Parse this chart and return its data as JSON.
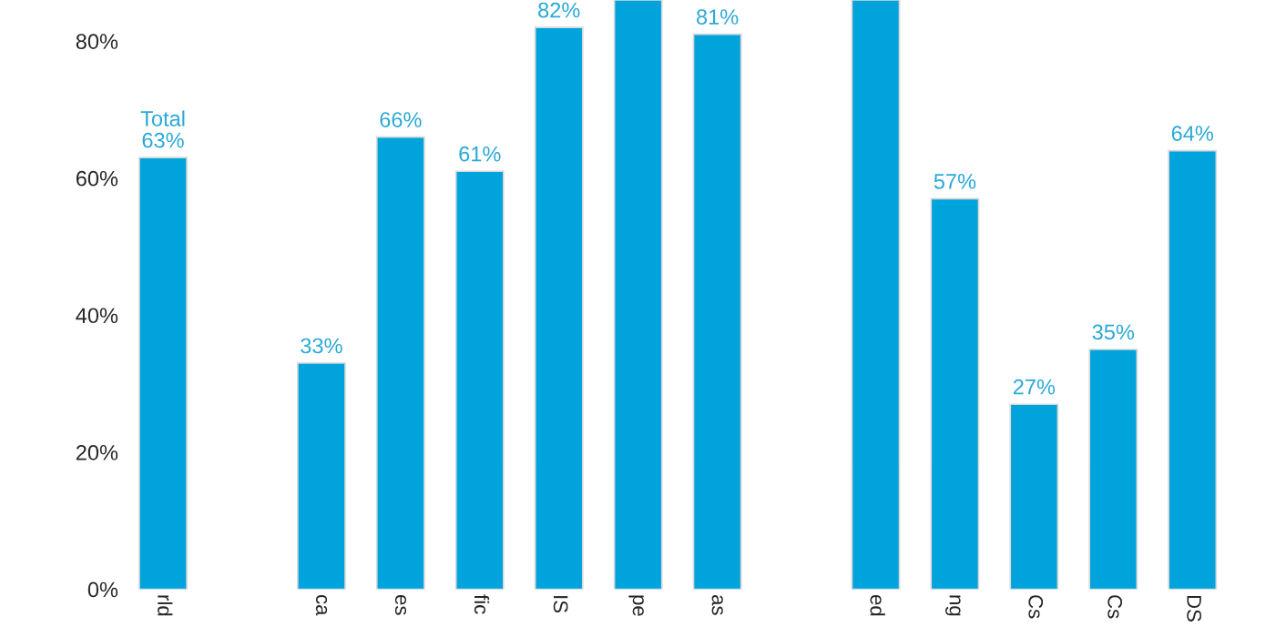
{
  "chart_data": {
    "type": "bar",
    "categories": [
      "rld",
      null,
      "ca",
      "es",
      "fic",
      "IS",
      "pe",
      "as",
      null,
      "ed",
      "ng",
      "Cs",
      "Cs",
      "DS"
    ],
    "values": [
      63,
      null,
      33,
      66,
      61,
      82,
      86,
      81,
      null,
      86,
      57,
      27,
      35,
      64
    ],
    "value_labels": [
      "Total\n63%",
      null,
      "33%",
      "66%",
      "61%",
      "82%",
      null,
      "81%",
      null,
      null,
      "57%",
      "27%",
      "35%",
      "64%"
    ],
    "color": "#00a3dc",
    "ylim": [
      0,
      86
    ],
    "yticks": [
      {
        "value": 0,
        "label": "0%"
      },
      {
        "value": 20,
        "label": "20%"
      },
      {
        "value": 40,
        "label": "40%"
      },
      {
        "value": 60,
        "label": "60%"
      },
      {
        "value": 80,
        "label": "80%"
      }
    ],
    "grid": false,
    "legend": false
  }
}
